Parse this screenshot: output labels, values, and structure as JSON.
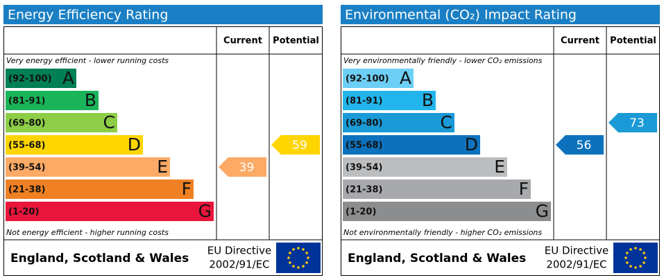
{
  "panels": [
    {
      "title": "Energy Efficiency Rating",
      "headers": [
        "Current",
        "Potential"
      ],
      "top_note": "Very energy efficient - lower running costs",
      "bottom_note": "Not energy efficient - higher running costs",
      "bands": [
        {
          "range": "(92-100)",
          "letter": "A",
          "color": "#008054"
        },
        {
          "range": "(81-91)",
          "letter": "B",
          "color": "#19b459"
        },
        {
          "range": "(69-80)",
          "letter": "C",
          "color": "#8dce46"
        },
        {
          "range": "(55-68)",
          "letter": "D",
          "color": "#ffd500"
        },
        {
          "range": "(39-54)",
          "letter": "E",
          "color": "#fcaa65"
        },
        {
          "range": "(21-38)",
          "letter": "F",
          "color": "#ef8023"
        },
        {
          "range": "(1-20)",
          "letter": "G",
          "color": "#e9153b"
        }
      ],
      "current": 39,
      "potential": 59,
      "footer": "England, Scotland & Wales",
      "directive": [
        "EU Directive",
        "2002/91/EC"
      ]
    },
    {
      "title": "Environmental (CO₂) Impact Rating",
      "headers": [
        "Current",
        "Potential"
      ],
      "top_note": "Very environmentally friendly - lower CO₂ emissions",
      "bottom_note": "Not environmentally friendly - higher CO₂ emissions",
      "bands": [
        {
          "range": "(92-100)",
          "letter": "A",
          "color": "#6dcff6"
        },
        {
          "range": "(81-91)",
          "letter": "B",
          "color": "#22b5eb"
        },
        {
          "range": "(69-80)",
          "letter": "C",
          "color": "#1a9ad7"
        },
        {
          "range": "(55-68)",
          "letter": "D",
          "color": "#0d72bd"
        },
        {
          "range": "(39-54)",
          "letter": "E",
          "color": "#bbbdbf"
        },
        {
          "range": "(21-38)",
          "letter": "F",
          "color": "#a7a9ac"
        },
        {
          "range": "(1-20)",
          "letter": "G",
          "color": "#8b8d8f"
        }
      ],
      "current": 56,
      "potential": 73,
      "footer": "England, Scotland & Wales",
      "directive": [
        "EU Directive",
        "2002/91/EC"
      ]
    }
  ]
}
